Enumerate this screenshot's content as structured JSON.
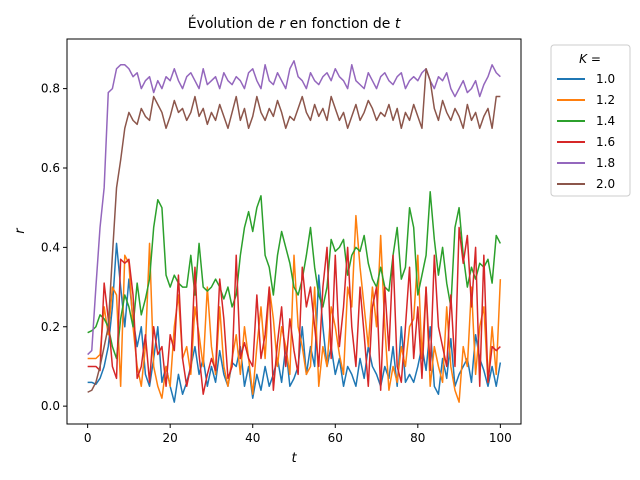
{
  "chart_data": {
    "type": "line",
    "title": "Évolution de r en fonction de t",
    "title_parts": [
      "Évolution de ",
      "r",
      " en fonction de ",
      "t"
    ],
    "xlabel": "t",
    "ylabel": "r",
    "xlim": [
      -5,
      105
    ],
    "ylim": [
      -0.045,
      0.925
    ],
    "xticks": [
      0,
      20,
      40,
      60,
      80,
      100
    ],
    "yticks": [
      0.0,
      0.2,
      0.4,
      0.6,
      0.8
    ],
    "ytick_labels": [
      "0.0",
      "0.2",
      "0.4",
      "0.6",
      "0.8"
    ],
    "grid": false,
    "legend": {
      "title_parts": [
        "K",
        " ="
      ],
      "placement": "outside-right"
    },
    "x": [
      0,
      1,
      2,
      3,
      4,
      5,
      6,
      7,
      8,
      9,
      10,
      11,
      12,
      13,
      14,
      15,
      16,
      17,
      18,
      19,
      20,
      21,
      22,
      23,
      24,
      25,
      26,
      27,
      28,
      29,
      30,
      31,
      32,
      33,
      34,
      35,
      36,
      37,
      38,
      39,
      40,
      41,
      42,
      43,
      44,
      45,
      46,
      47,
      48,
      49,
      50,
      51,
      52,
      53,
      54,
      55,
      56,
      57,
      58,
      59,
      60,
      61,
      62,
      63,
      64,
      65,
      66,
      67,
      68,
      69,
      70,
      71,
      72,
      73,
      74,
      75,
      76,
      77,
      78,
      79,
      80,
      81,
      82,
      83,
      84,
      85,
      86,
      87,
      88,
      89,
      90,
      91,
      92,
      93,
      94,
      95,
      96,
      97,
      98,
      99,
      100
    ],
    "series": [
      {
        "name": "1.0",
        "color": "#1f77b4",
        "values": [
          0.06,
          0.06,
          0.055,
          0.07,
          0.1,
          0.15,
          0.25,
          0.41,
          0.3,
          0.2,
          0.32,
          0.22,
          0.15,
          0.2,
          0.08,
          0.05,
          0.12,
          0.2,
          0.06,
          0.1,
          0.05,
          0.01,
          0.08,
          0.03,
          0.06,
          0.1,
          0.15,
          0.08,
          0.12,
          0.05,
          0.1,
          0.06,
          0.14,
          0.08,
          0.05,
          0.11,
          0.1,
          0.15,
          0.05,
          0.1,
          0.02,
          0.08,
          0.04,
          0.1,
          0.05,
          0.08,
          0.12,
          0.06,
          0.15,
          0.05,
          0.07,
          0.1,
          0.2,
          0.08,
          0.15,
          0.1,
          0.33,
          0.2,
          0.1,
          0.15,
          0.08,
          0.12,
          0.05,
          0.1,
          0.08,
          0.05,
          0.12,
          0.07,
          0.15,
          0.1,
          0.08,
          0.05,
          0.1,
          0.07,
          0.15,
          0.05,
          0.2,
          0.06,
          0.08,
          0.06,
          0.1,
          0.15,
          0.09,
          0.2,
          0.05,
          0.03,
          0.12,
          0.07,
          0.17,
          0.05,
          0.08,
          0.1,
          0.12,
          0.06,
          0.18,
          0.12,
          0.09,
          0.05,
          0.1,
          0.05,
          0.11
        ]
      },
      {
        "name": "1.2",
        "color": "#ff7f0e",
        "values": [
          0.12,
          0.12,
          0.12,
          0.13,
          0.25,
          0.18,
          0.3,
          0.28,
          0.05,
          0.38,
          0.36,
          0.2,
          0.1,
          0.05,
          0.15,
          0.41,
          0.1,
          0.05,
          0.02,
          0.1,
          0.05,
          0.2,
          0.28,
          0.12,
          0.15,
          0.08,
          0.25,
          0.18,
          0.1,
          0.3,
          0.15,
          0.08,
          0.25,
          0.1,
          0.05,
          0.12,
          0.18,
          0.08,
          0.2,
          0.12,
          0.03,
          0.15,
          0.25,
          0.12,
          0.3,
          0.22,
          0.1,
          0.2,
          0.15,
          0.08,
          0.38,
          0.2,
          0.15,
          0.08,
          0.1,
          0.3,
          0.05,
          0.15,
          0.1,
          0.25,
          0.2,
          0.13,
          0.08,
          0.3,
          0.25,
          0.48,
          0.35,
          0.25,
          0.15,
          0.3,
          0.2,
          0.43,
          0.2,
          0.04,
          0.1,
          0.06,
          0.15,
          0.1,
          0.2,
          0.22,
          0.38,
          0.12,
          0.3,
          0.05,
          0.15,
          0.1,
          0.06,
          0.25,
          0.1,
          0.04,
          0.01,
          0.15,
          0.1,
          0.3,
          0.08,
          0.2,
          0.25,
          0.06,
          0.2,
          0.08,
          0.32
        ]
      },
      {
        "name": "1.4",
        "color": "#2ca02c",
        "values": [
          0.185,
          0.19,
          0.2,
          0.23,
          0.22,
          0.2,
          0.15,
          0.12,
          0.22,
          0.28,
          0.25,
          0.2,
          0.31,
          0.23,
          0.27,
          0.32,
          0.45,
          0.52,
          0.5,
          0.33,
          0.3,
          0.33,
          0.31,
          0.3,
          0.3,
          0.38,
          0.28,
          0.41,
          0.3,
          0.29,
          0.3,
          0.32,
          0.3,
          0.27,
          0.3,
          0.25,
          0.28,
          0.38,
          0.45,
          0.49,
          0.44,
          0.5,
          0.53,
          0.38,
          0.35,
          0.28,
          0.38,
          0.44,
          0.4,
          0.36,
          0.3,
          0.28,
          0.32,
          0.38,
          0.45,
          0.35,
          0.28,
          0.25,
          0.3,
          0.42,
          0.39,
          0.4,
          0.42,
          0.33,
          0.38,
          0.4,
          0.39,
          0.43,
          0.36,
          0.32,
          0.3,
          0.35,
          0.3,
          0.29,
          0.38,
          0.45,
          0.32,
          0.35,
          0.5,
          0.45,
          0.28,
          0.33,
          0.38,
          0.54,
          0.42,
          0.33,
          0.4,
          0.31,
          0.25,
          0.45,
          0.5,
          0.38,
          0.3,
          0.35,
          0.32,
          0.36,
          0.35,
          0.37,
          0.31,
          0.43,
          0.41
        ]
      },
      {
        "name": "1.6",
        "color": "#d62728",
        "values": [
          0.1,
          0.1,
          0.1,
          0.09,
          0.31,
          0.22,
          0.1,
          0.07,
          0.37,
          0.36,
          0.37,
          0.28,
          0.07,
          0.1,
          0.18,
          0.06,
          0.2,
          0.13,
          0.15,
          0.05,
          0.18,
          0.14,
          0.33,
          0.12,
          0.05,
          0.1,
          0.35,
          0.13,
          0.03,
          0.08,
          0.12,
          0.09,
          0.32,
          0.22,
          0.07,
          0.1,
          0.38,
          0.12,
          0.16,
          0.12,
          0.1,
          0.28,
          0.12,
          0.18,
          0.3,
          0.04,
          0.16,
          0.25,
          0.1,
          0.22,
          0.14,
          0.08,
          0.35,
          0.25,
          0.3,
          0.2,
          0.1,
          0.3,
          0.4,
          0.12,
          0.38,
          0.15,
          0.25,
          0.4,
          0.2,
          0.1,
          0.3,
          0.18,
          0.05,
          0.25,
          0.3,
          0.04,
          0.3,
          0.14,
          0.38,
          0.1,
          0.06,
          0.2,
          0.35,
          0.12,
          0.25,
          0.07,
          0.3,
          0.09,
          0.38,
          0.2,
          0.15,
          0.1,
          0.28,
          0.1,
          0.45,
          0.36,
          0.43,
          0.25,
          0.4,
          0.05,
          0.38,
          0.06,
          0.15,
          0.14,
          0.15
        ]
      },
      {
        "name": "1.8",
        "color": "#9467bd",
        "values": [
          0.13,
          0.14,
          0.3,
          0.45,
          0.55,
          0.79,
          0.8,
          0.85,
          0.86,
          0.86,
          0.85,
          0.83,
          0.84,
          0.8,
          0.82,
          0.83,
          0.79,
          0.82,
          0.8,
          0.83,
          0.82,
          0.85,
          0.82,
          0.8,
          0.83,
          0.84,
          0.82,
          0.8,
          0.85,
          0.81,
          0.82,
          0.83,
          0.8,
          0.84,
          0.82,
          0.81,
          0.83,
          0.82,
          0.8,
          0.84,
          0.85,
          0.82,
          0.8,
          0.86,
          0.82,
          0.81,
          0.84,
          0.82,
          0.8,
          0.85,
          0.87,
          0.83,
          0.82,
          0.8,
          0.84,
          0.82,
          0.81,
          0.83,
          0.84,
          0.82,
          0.85,
          0.83,
          0.82,
          0.8,
          0.86,
          0.82,
          0.81,
          0.8,
          0.84,
          0.82,
          0.8,
          0.83,
          0.84,
          0.82,
          0.81,
          0.83,
          0.84,
          0.8,
          0.82,
          0.83,
          0.82,
          0.84,
          0.85,
          0.82,
          0.8,
          0.83,
          0.82,
          0.84,
          0.8,
          0.78,
          0.8,
          0.82,
          0.79,
          0.8,
          0.82,
          0.78,
          0.81,
          0.83,
          0.86,
          0.84,
          0.83
        ]
      },
      {
        "name": "2.0",
        "color": "#8c564b",
        "values": [
          0.035,
          0.04,
          0.06,
          0.1,
          0.15,
          0.2,
          0.38,
          0.55,
          0.62,
          0.7,
          0.74,
          0.72,
          0.71,
          0.75,
          0.73,
          0.72,
          0.78,
          0.76,
          0.74,
          0.7,
          0.73,
          0.77,
          0.74,
          0.75,
          0.72,
          0.74,
          0.78,
          0.73,
          0.75,
          0.71,
          0.74,
          0.72,
          0.76,
          0.73,
          0.7,
          0.74,
          0.78,
          0.72,
          0.75,
          0.7,
          0.73,
          0.78,
          0.74,
          0.72,
          0.75,
          0.73,
          0.77,
          0.74,
          0.7,
          0.73,
          0.72,
          0.75,
          0.78,
          0.74,
          0.72,
          0.76,
          0.73,
          0.75,
          0.72,
          0.78,
          0.75,
          0.72,
          0.74,
          0.7,
          0.73,
          0.76,
          0.72,
          0.74,
          0.77,
          0.75,
          0.72,
          0.74,
          0.73,
          0.76,
          0.72,
          0.75,
          0.7,
          0.74,
          0.72,
          0.76,
          0.73,
          0.7,
          0.85,
          0.82,
          0.75,
          0.72,
          0.77,
          0.74,
          0.72,
          0.75,
          0.73,
          0.7,
          0.76,
          0.72,
          0.74,
          0.7,
          0.73,
          0.75,
          0.7,
          0.78,
          0.78
        ]
      }
    ]
  }
}
